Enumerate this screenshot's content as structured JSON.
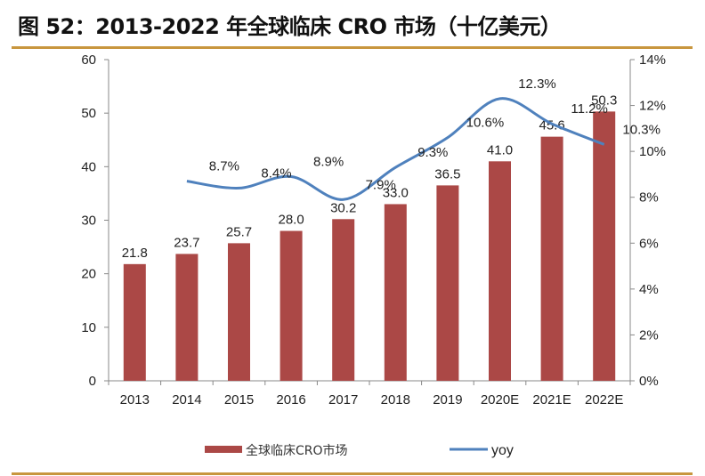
{
  "title": "图 52：2013-2022 年全球临床 CRO 市场（十亿美元）",
  "chart_data": {
    "type": "bar",
    "title": "图 52：2013-2022 年全球临床 CRO 市场（十亿美元）",
    "categories": [
      "2013",
      "2014",
      "2015",
      "2016",
      "2017",
      "2018",
      "2019",
      "2020E",
      "2021E",
      "2022E"
    ],
    "series": [
      {
        "name": "全球临床CRO市场",
        "type": "bar",
        "axis": "left",
        "color": "#AB4846",
        "values": [
          21.8,
          23.7,
          25.7,
          28.0,
          30.2,
          33.0,
          36.5,
          41.0,
          45.6,
          50.3
        ],
        "labels": [
          "21.8",
          "23.7",
          "25.7",
          "28.0",
          "30.2",
          "33.0",
          "36.5",
          "41.0",
          "45.6",
          "50.3"
        ]
      },
      {
        "name": "yoy",
        "type": "line",
        "axis": "right",
        "color": "#4F81BD",
        "values": [
          null,
          8.7,
          8.4,
          8.9,
          7.9,
          9.3,
          10.6,
          12.3,
          11.2,
          10.3
        ],
        "labels": [
          null,
          "8.7%",
          "8.4%",
          "8.9%",
          "7.9%",
          "9.3%",
          "10.6%",
          "12.3%",
          "11.2%",
          "10.3%"
        ]
      }
    ],
    "ylim_left": [
      0,
      60
    ],
    "yticks_left": [
      "0",
      "10",
      "20",
      "30",
      "40",
      "50",
      "60"
    ],
    "ylim_right": [
      0,
      14
    ],
    "yticks_right": [
      "0%",
      "2%",
      "4%",
      "6%",
      "8%",
      "10%",
      "12%",
      "14%"
    ],
    "grid": false,
    "legend_position": "bottom",
    "accent_color": "#C8963E"
  }
}
